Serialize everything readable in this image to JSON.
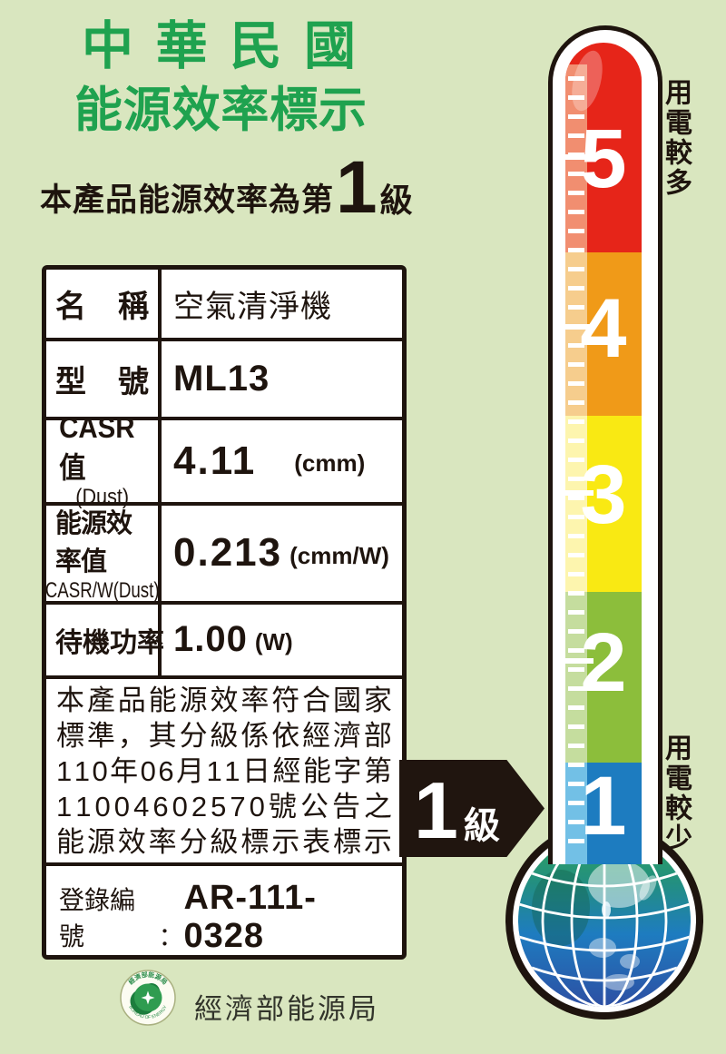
{
  "header": {
    "title_line1": "中華民國",
    "title_line2": "能源效率標示",
    "subtitle_prefix": "本產品能源效率為第",
    "grade_number": "1",
    "grade_unit": "級"
  },
  "table": {
    "rows": {
      "name": {
        "label": "名稱",
        "value": "空氣清淨機"
      },
      "model": {
        "label": "型號",
        "value": "ML13"
      },
      "casr": {
        "label_line1": "CASR值",
        "label_line2": "(Dust)",
        "value": "4.11",
        "unit": "(cmm)"
      },
      "efficiency": {
        "label_line1": "能源效率值",
        "label_line2": "CASR/W(Dust)",
        "value": "0.213",
        "unit": "(cmm/W)"
      },
      "standby": {
        "label": "待機功率",
        "value": "1.00",
        "unit": "(W)"
      }
    },
    "statement_lines": [
      "本產品能源效率符合國家",
      "標準，其分級係依經濟部",
      "110年06月11日經能字第",
      "11004602570號公告之",
      "能源效率分級標示表標示"
    ],
    "registration": {
      "label": "登錄編號",
      "colon": "：",
      "value": "AR-111-0328"
    }
  },
  "grade_arrow": {
    "number": "1",
    "unit": "級"
  },
  "thermometer": {
    "more_label": "用電較多",
    "less_label": "用電較少",
    "levels": [
      {
        "label": "5",
        "color": "#e62519"
      },
      {
        "label": "4",
        "color": "#f09a18"
      },
      {
        "label": "3",
        "color": "#f9e913"
      },
      {
        "label": "2",
        "color": "#8cbe3b"
      },
      {
        "label": "1",
        "color": "#1d7cc0"
      }
    ]
  },
  "footer": {
    "agency_name": "經濟部能源局",
    "logo_arc_top": "經濟部能源局",
    "logo_arc_bottom": "BUREAU OF ENERGY"
  },
  "colors": {
    "background": "#d9e6bf",
    "title_green": "#1fa24f",
    "text_black": "#1e140e",
    "arrow_black": "#20150f"
  }
}
